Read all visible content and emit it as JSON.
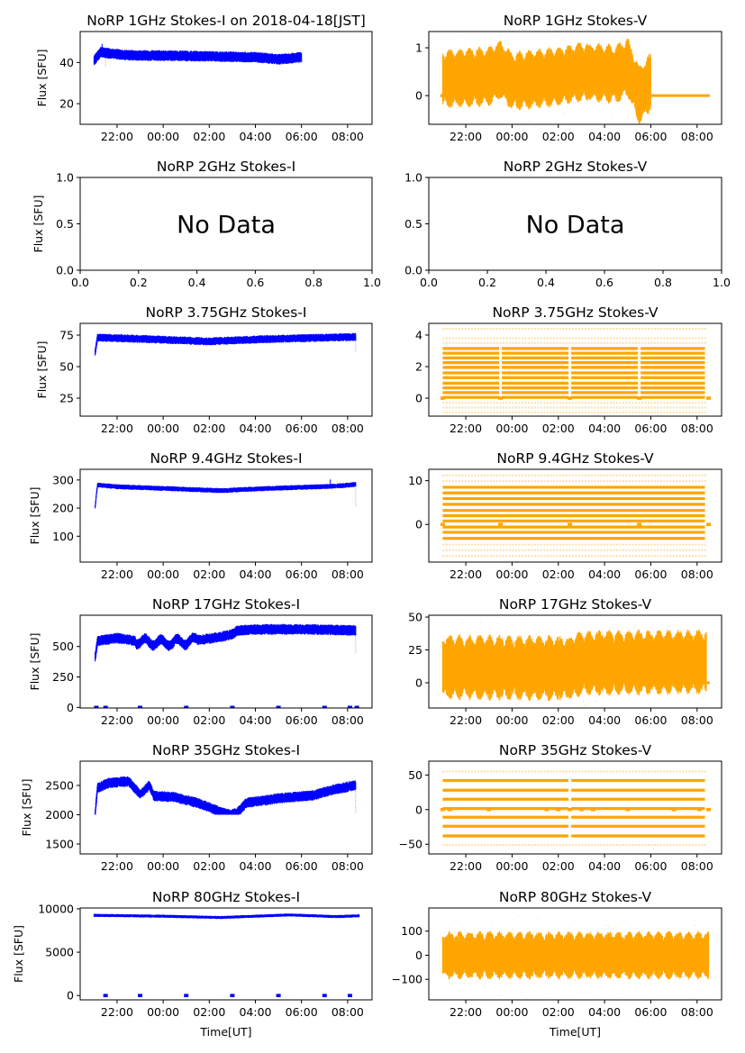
{
  "figure_title_date": "2018-04-18[JST]",
  "chart_data": [
    {
      "type": "line",
      "id": "1ghz-i",
      "title": "NoRP 1GHz Stokes-I on 2018-04-18[JST]",
      "ylabel": "Flux [SFU]",
      "xlabel": "",
      "color": "#0000ff",
      "ylim": [
        10,
        55
      ],
      "yticks": [
        {
          "v": 20,
          "label": "20"
        },
        {
          "v": 40,
          "label": "40"
        }
      ],
      "xlim_hours": [
        20.4,
        33.06
      ],
      "xticks": [
        {
          "v": 22,
          "label": "22:00"
        },
        {
          "v": 24,
          "label": "00:00"
        },
        {
          "v": 26,
          "label": "02:00"
        },
        {
          "v": 28,
          "label": "04:00"
        },
        {
          "v": 30,
          "label": "06:00"
        },
        {
          "v": 32,
          "label": "08:00"
        }
      ],
      "trend": [
        [
          21.0,
          41
        ],
        [
          21.3,
          45
        ],
        [
          21.6,
          44.5
        ],
        [
          22.5,
          43.5
        ],
        [
          26,
          43
        ],
        [
          28,
          42.5
        ],
        [
          29,
          41.5
        ],
        [
          30,
          42.5
        ]
      ],
      "noise": 1.3,
      "spikes": [
        [
          21.35,
          49
        ],
        [
          21.5,
          38
        ]
      ],
      "data_range": [
        21.0,
        30.0
      ],
      "zero_marks": []
    },
    {
      "type": "scatter",
      "id": "1ghz-v",
      "title": "NoRP 1GHz Stokes-V",
      "ylabel": "",
      "xlabel": "",
      "color": "#ffa500",
      "ylim": [
        -0.6,
        1.34
      ],
      "yticks": [
        {
          "v": 0,
          "label": "0"
        },
        {
          "v": 1,
          "label": "1"
        }
      ],
      "xlim_hours": [
        20.4,
        33.06
      ],
      "trend": [
        [
          21.0,
          0.35
        ],
        [
          23.0,
          0.4
        ],
        [
          23.5,
          0.55
        ],
        [
          24.0,
          0.3
        ],
        [
          26.0,
          0.4
        ],
        [
          27.0,
          0.5
        ],
        [
          28.5,
          0.45
        ],
        [
          29.0,
          0.6
        ],
        [
          29.5,
          0.0
        ],
        [
          30.0,
          0.3
        ]
      ],
      "noise": 0.3,
      "data_range": [
        21.0,
        30.0
      ],
      "zero_line_range": [
        30.0,
        32.55
      ],
      "zero_marks": [
        21.0,
        23.5,
        26.5
      ]
    },
    {
      "type": "empty",
      "id": "2ghz-i",
      "title": "NoRP 2GHz Stokes-I",
      "ylabel": "Flux [SFU]",
      "message": "No Data",
      "ylim": [
        0,
        1
      ],
      "xlim": [
        0,
        1
      ],
      "yticks": [
        {
          "v": 0,
          "label": "0.0"
        },
        {
          "v": 0.5,
          "label": "0.5"
        },
        {
          "v": 1,
          "label": "1.0"
        }
      ],
      "xticks": [
        {
          "v": 0,
          "label": "0.0"
        },
        {
          "v": 0.2,
          "label": "0.2"
        },
        {
          "v": 0.4,
          "label": "0.4"
        },
        {
          "v": 0.6,
          "label": "0.6"
        },
        {
          "v": 0.8,
          "label": "0.8"
        },
        {
          "v": 1,
          "label": "1.0"
        }
      ]
    },
    {
      "type": "empty",
      "id": "2ghz-v",
      "title": "NoRP 2GHz Stokes-V",
      "ylabel": "",
      "message": "No Data",
      "ylim": [
        0,
        1
      ],
      "xlim": [
        0,
        1
      ],
      "yticks": [
        {
          "v": 0,
          "label": "0.0"
        },
        {
          "v": 0.5,
          "label": "0.5"
        },
        {
          "v": 1,
          "label": "1.0"
        }
      ],
      "xticks": [
        {
          "v": 0,
          "label": "0.0"
        },
        {
          "v": 0.2,
          "label": "0.2"
        },
        {
          "v": 0.4,
          "label": "0.4"
        },
        {
          "v": 0.6,
          "label": "0.6"
        },
        {
          "v": 0.8,
          "label": "0.8"
        },
        {
          "v": 1,
          "label": "1.0"
        }
      ]
    },
    {
      "type": "line",
      "id": "3.75ghz-i",
      "title": "NoRP 3.75GHz Stokes-I",
      "ylabel": "Flux [SFU]",
      "color": "#0000ff",
      "ylim": [
        10.7,
        84.3
      ],
      "yticks": [
        {
          "v": 25,
          "label": "25"
        },
        {
          "v": 50,
          "label": "50"
        },
        {
          "v": 75,
          "label": "75"
        }
      ],
      "xlim_hours": [
        20.4,
        33.06
      ],
      "trend": [
        [
          21.05,
          61
        ],
        [
          21.15,
          73
        ],
        [
          23,
          72
        ],
        [
          26,
          70
        ],
        [
          28,
          71.5
        ],
        [
          30,
          72.5
        ],
        [
          32.3,
          73.5
        ]
      ],
      "noise": 1.6,
      "spikes": [
        [
          32.35,
          61
        ]
      ],
      "data_range": [
        21.05,
        32.35
      ],
      "zero_marks": []
    },
    {
      "type": "levels",
      "id": "3.75ghz-v",
      "title": "NoRP 3.75GHz Stokes-V",
      "ylabel": "",
      "color": "#ffa500",
      "ylim": [
        -1.14,
        4.74
      ],
      "yticks": [
        {
          "v": 0,
          "label": "0"
        },
        {
          "v": 2,
          "label": "2"
        },
        {
          "v": 4,
          "label": "4"
        }
      ],
      "xlim_hours": [
        20.4,
        33.06
      ],
      "levels": [
        0.05,
        0.35,
        0.65,
        0.95,
        1.3,
        1.6,
        1.95,
        2.25,
        2.55,
        2.85,
        3.15
      ],
      "faint_levels": [
        -0.9,
        -0.6,
        -0.3,
        3.5,
        3.8,
        4.4
      ],
      "data_range": [
        21.0,
        32.4
      ],
      "gaps": [
        23.5,
        26.5,
        29.5
      ],
      "zero_marks": [
        21.0,
        23.5,
        26.5,
        29.5,
        32.5
      ]
    },
    {
      "type": "line",
      "id": "9.4ghz-i",
      "title": "NoRP 9.4GHz Stokes-I",
      "ylabel": "Flux [SFU]",
      "color": "#0000ff",
      "ylim": [
        8,
        338
      ],
      "yticks": [
        {
          "v": 100,
          "label": "100"
        },
        {
          "v": 200,
          "label": "200"
        },
        {
          "v": 300,
          "label": "300"
        }
      ],
      "xlim_hours": [
        20.4,
        33.06
      ],
      "trend": [
        [
          21.05,
          205
        ],
        [
          21.15,
          282
        ],
        [
          22,
          276
        ],
        [
          24,
          270
        ],
        [
          26.5,
          262
        ],
        [
          28,
          268
        ],
        [
          30,
          274
        ],
        [
          31.5,
          278
        ],
        [
          32.3,
          284
        ]
      ],
      "noise": 4.5,
      "spikes": [
        [
          31.25,
          302
        ],
        [
          32.35,
          205
        ]
      ],
      "data_range": [
        21.05,
        32.35
      ],
      "zero_marks": []
    },
    {
      "type": "levels",
      "id": "9.4ghz-v",
      "title": "NoRP 9.4GHz Stokes-V",
      "ylabel": "",
      "color": "#ffa500",
      "ylim": [
        -8.6,
        12.6
      ],
      "yticks": [
        {
          "v": 0,
          "label": "0"
        },
        {
          "v": 10,
          "label": "10"
        }
      ],
      "xlim_hours": [
        20.4,
        33.06
      ],
      "levels": [
        -3.2,
        -1.8,
        -0.6,
        0.8,
        2.0,
        3.2,
        4.6,
        5.9,
        7.2,
        8.5
      ],
      "faint_levels": [
        -4.6,
        -5.9,
        -7.2,
        9.9,
        11.2
      ],
      "data_range": [
        21.0,
        32.4
      ],
      "gaps": [],
      "zero_marks": [
        21.0,
        23.5,
        26.5,
        29.5,
        32.5
      ]
    },
    {
      "type": "line",
      "id": "17ghz-i",
      "title": "NoRP 17GHz Stokes-I",
      "ylabel": "Flux [SFU]",
      "color": "#0000ff",
      "ylim": [
        -5,
        757
      ],
      "yticks": [
        {
          "v": 0,
          "label": "0"
        },
        {
          "v": 250,
          "label": "250"
        },
        {
          "v": 500,
          "label": "500"
        }
      ],
      "xlim_hours": [
        20.4,
        33.06
      ],
      "trend": [
        [
          21.05,
          410
        ],
        [
          21.15,
          545
        ],
        [
          22,
          570
        ],
        [
          23,
          540
        ],
        [
          24,
          530
        ],
        [
          25,
          540
        ],
        [
          25.8,
          560
        ],
        [
          26.5,
          580
        ],
        [
          27.0,
          600
        ],
        [
          27.2,
          630
        ],
        [
          28,
          640
        ],
        [
          30,
          642
        ],
        [
          32.3,
          632
        ]
      ],
      "noise": 22,
      "wiggle": 45,
      "wiggle_range": [
        22.8,
        25.5
      ],
      "spikes": [
        [
          32.35,
          440
        ]
      ],
      "data_range": [
        21.05,
        32.35
      ],
      "zero_marks": [
        21.1,
        21.5,
        23.0,
        25.0,
        27.0,
        29.0,
        31.0,
        32.1,
        32.4
      ]
    },
    {
      "type": "band",
      "id": "17ghz-v",
      "title": "NoRP 17GHz Stokes-V",
      "ylabel": "",
      "color": "#ffa500",
      "ylim": [
        -19.2,
        51.4
      ],
      "yticks": [
        {
          "v": 0,
          "label": "0"
        },
        {
          "v": 25,
          "label": "25"
        },
        {
          "v": 50,
          "label": "50"
        }
      ],
      "xlim_hours": [
        20.4,
        33.06
      ],
      "trend": [
        [
          21.0,
          12
        ],
        [
          26.5,
          11
        ],
        [
          27.0,
          15
        ],
        [
          32.4,
          16
        ]
      ],
      "noise": 12,
      "data_range": [
        21.0,
        32.4
      ],
      "zero_line_range": [
        21.0,
        32.55
      ],
      "zero_marks": []
    },
    {
      "type": "line",
      "id": "35ghz-i",
      "title": "NoRP 35GHz Stokes-I",
      "ylabel": "Flux [SFU]",
      "color": "#0000ff",
      "ylim": [
        1330,
        2915
      ],
      "yticks": [
        {
          "v": 1500,
          "label": "1500"
        },
        {
          "v": 2000,
          "label": "2000"
        },
        {
          "v": 2500,
          "label": "2500"
        }
      ],
      "xlim_hours": [
        20.4,
        33.06
      ],
      "trend": [
        [
          21.05,
          2020
        ],
        [
          21.15,
          2450
        ],
        [
          21.6,
          2540
        ],
        [
          22.5,
          2570
        ],
        [
          23.0,
          2350
        ],
        [
          23.4,
          2500
        ],
        [
          23.6,
          2320
        ],
        [
          24.5,
          2300
        ],
        [
          25.5,
          2200
        ],
        [
          26.5,
          2050
        ],
        [
          26.9,
          2000
        ],
        [
          27.2,
          2030
        ],
        [
          27.6,
          2200
        ],
        [
          29,
          2280
        ],
        [
          30.5,
          2330
        ],
        [
          31.3,
          2420
        ],
        [
          32.3,
          2500
        ]
      ],
      "noise": 45,
      "spikes": [
        [
          32.35,
          2030
        ]
      ],
      "data_range": [
        21.05,
        32.35
      ],
      "clip_min": 2000,
      "zero_marks": []
    },
    {
      "type": "levels",
      "id": "35ghz-v",
      "title": "NoRP 35GHz Stokes-V",
      "ylabel": "",
      "color": "#ffa500",
      "ylim": [
        -64,
        70
      ],
      "yticks": [
        {
          "v": -50,
          "label": "−50"
        },
        {
          "v": 0,
          "label": "0"
        },
        {
          "v": 50,
          "label": "50"
        }
      ],
      "xlim_hours": [
        20.4,
        33.06
      ],
      "levels": [
        -38,
        -24,
        -11,
        1.5,
        15,
        28,
        42
      ],
      "faint_levels": [
        -51,
        55
      ],
      "data_range": [
        21.0,
        32.4
      ],
      "gaps": [
        26.5
      ],
      "zero_marks": [
        21.0,
        21.3,
        23.0,
        25.5,
        26.0,
        26.5,
        27.0,
        27.5,
        29.0,
        31.0,
        32.1,
        32.5
      ]
    },
    {
      "type": "line",
      "id": "80ghz-i",
      "title": "NoRP 80GHz Stokes-I",
      "ylabel": "Flux [SFU]",
      "xlabel": "Time[UT]",
      "color": "#0000ff",
      "ylim": [
        -500,
        10100
      ],
      "yticks": [
        {
          "v": 0,
          "label": "0"
        },
        {
          "v": 5000,
          "label": "5000"
        },
        {
          "v": 10000,
          "label": "10000"
        }
      ],
      "xlim_hours": [
        20.4,
        33.06
      ],
      "trend": [
        [
          21.0,
          9250
        ],
        [
          24,
          9150
        ],
        [
          26.5,
          9000
        ],
        [
          29.5,
          9300
        ],
        [
          31.5,
          9100
        ],
        [
          32.5,
          9200
        ]
      ],
      "noise": 90,
      "data_range": [
        21.0,
        32.5
      ],
      "zero_marks": [
        21.5,
        23.0,
        25.0,
        27.0,
        29.0,
        31.0,
        32.1
      ]
    },
    {
      "type": "band",
      "id": "80ghz-v",
      "title": "NoRP 80GHz Stokes-V",
      "ylabel": "",
      "xlabel": "Time[UT]",
      "color": "#ffa500",
      "ylim": [
        -185,
        196
      ],
      "yticks": [
        {
          "v": -100,
          "label": "−100"
        },
        {
          "v": 0,
          "label": "0"
        },
        {
          "v": 100,
          "label": "100"
        }
      ],
      "xlim_hours": [
        20.4,
        33.06
      ],
      "trend": [
        [
          21.0,
          0
        ],
        [
          32.5,
          0
        ]
      ],
      "noise": 48,
      "data_range": [
        21.0,
        32.5
      ],
      "zero_marks": []
    }
  ]
}
